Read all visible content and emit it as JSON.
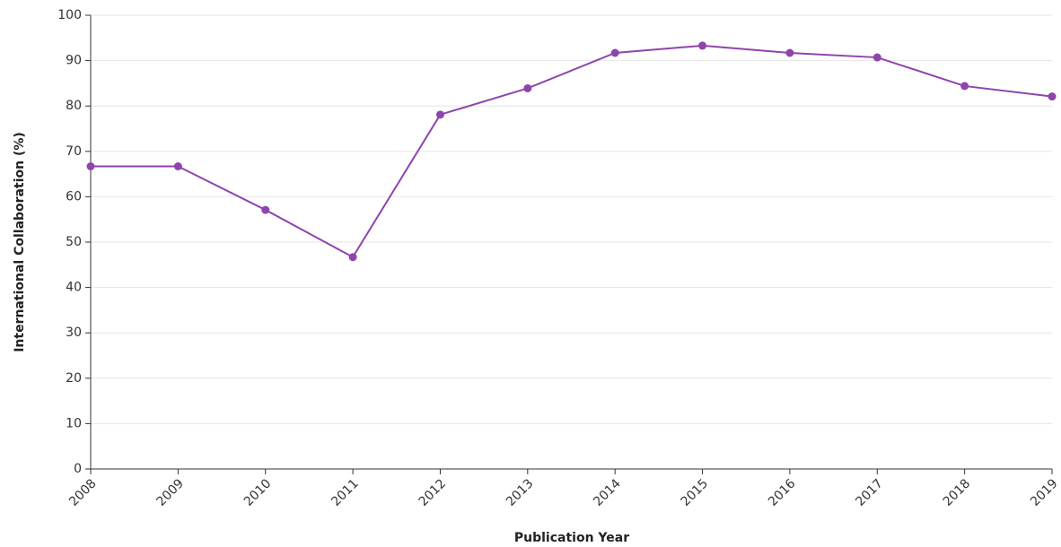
{
  "chart_data": {
    "type": "line",
    "x": [
      2008,
      2009,
      2010,
      2011,
      2012,
      2013,
      2014,
      2015,
      2016,
      2017,
      2018,
      2019
    ],
    "series": [
      {
        "color": "#8e44ad",
        "values": [
          66.7,
          66.7,
          57.1,
          46.7,
          78.1,
          83.9,
          91.7,
          93.3,
          91.7,
          90.7,
          84.4,
          82.1
        ]
      }
    ],
    "xlim": [
      2008,
      2019
    ],
    "xticks": [
      2008,
      2009,
      2010,
      2011,
      2012,
      2013,
      2014,
      2015,
      2016,
      2017,
      2018,
      2019
    ],
    "ylim": [
      0,
      100
    ],
    "yticks": [
      0,
      10,
      20,
      30,
      40,
      50,
      60,
      70,
      80,
      90,
      100
    ],
    "xlabel": "Publication Year",
    "ylabel": "International Collaboration (%)",
    "grid": true
  }
}
